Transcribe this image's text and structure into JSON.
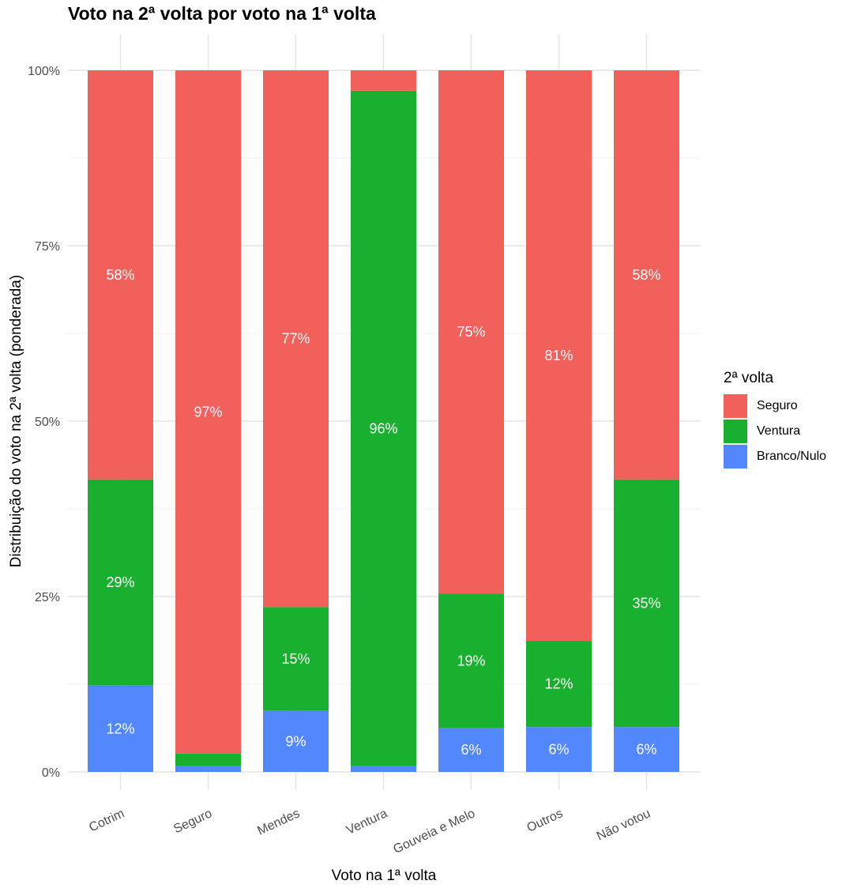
{
  "title": "Voto na 2ª volta por voto na 1ª volta",
  "chart_data": {
    "type": "bar",
    "stacked": true,
    "title": "Voto na 2ª volta por voto na 1ª volta",
    "xlabel": "Voto na 1ª volta",
    "ylabel": "Distribuição do voto na 2ª volta (ponderada)",
    "ylim": [
      0,
      1
    ],
    "y_ticks": [
      "0%",
      "25%",
      "50%",
      "75%",
      "100%"
    ],
    "categories": [
      "Cotrim",
      "Seguro",
      "Mendes",
      "Ventura",
      "Gouveia e Melo",
      "Outros",
      "Não votou"
    ],
    "series": [
      {
        "name": "Branco/Nulo",
        "color": "#5387FC",
        "values": [
          0.123,
          0.008,
          0.087,
          0.008,
          0.063,
          0.064,
          0.064
        ],
        "labels": [
          "12%",
          "",
          "9%",
          "",
          "6%",
          "6%",
          "6%"
        ]
      },
      {
        "name": "Ventura",
        "color": "#1AB02F",
        "values": [
          0.294,
          0.018,
          0.148,
          0.963,
          0.191,
          0.123,
          0.353
        ],
        "labels": [
          "29%",
          "",
          "15%",
          "96%",
          "19%",
          "12%",
          "35%"
        ]
      },
      {
        "name": "Seguro",
        "color": "#F2605B",
        "values": [
          0.583,
          0.974,
          0.765,
          0.029,
          0.746,
          0.813,
          0.583
        ],
        "labels": [
          "58%",
          "97%",
          "77%",
          "",
          "75%",
          "81%",
          "58%"
        ]
      }
    ],
    "legend": {
      "title": "2ª volta",
      "position": "right",
      "order": [
        "Seguro",
        "Ventura",
        "Branco/Nulo"
      ]
    },
    "grid": true
  }
}
